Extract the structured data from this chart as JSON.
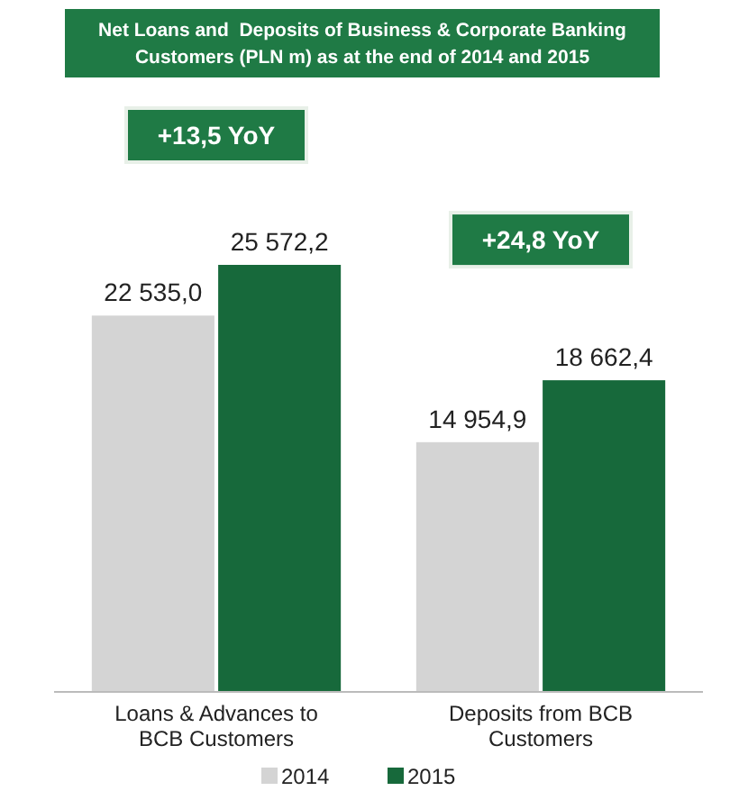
{
  "chart_data": {
    "type": "bar",
    "title": "Net Loans and  Deposits of Business & Corporate Banking Customers (PLN m) as at the end of 2014 and 2015",
    "categories": [
      "Loans & Advances to BCB Customers",
      "Deposits from BCB Customers"
    ],
    "series": [
      {
        "name": "2014",
        "color": "#d4d4d4",
        "values": [
          22535.0,
          14954.9
        ],
        "value_labels": [
          "22 535,0",
          "14 954,9"
        ]
      },
      {
        "name": "2015",
        "color": "#17693b",
        "values": [
          25572.2,
          18662.4
        ],
        "value_labels": [
          "25 572,2",
          "18 662,4"
        ]
      }
    ],
    "annotations": [
      "+13,5 YoY",
      "+24,8 YoY"
    ],
    "legend": "bottom"
  }
}
